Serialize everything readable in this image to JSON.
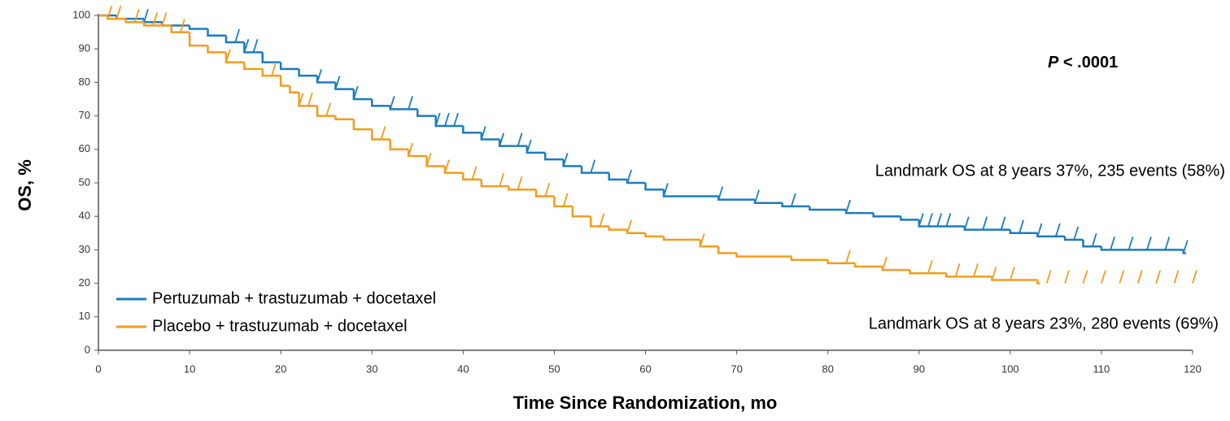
{
  "chart_data": {
    "type": "step",
    "xlabel": "Time Since Randomization, mo",
    "ylabel": "OS, %",
    "xlim": [
      0,
      120
    ],
    "xticks": [
      0,
      10,
      20,
      30,
      40,
      50,
      60,
      70,
      80,
      90,
      100,
      110,
      120
    ],
    "ylim": [
      0,
      100
    ],
    "yticks": [
      0,
      10,
      20,
      30,
      40,
      50,
      60,
      70,
      80,
      90,
      100
    ],
    "legend": "lower left",
    "annotations": {
      "p_symbol": "P",
      "p_value": "< .0001",
      "landmark_1": "Landmark OS at 8 years 37%, 235 events (58%)",
      "landmark_2": "Landmark OS at 8 years 23%, 280 events (69%)"
    },
    "series": [
      {
        "name": "Pertuzumab + trastuzumab + docetaxel",
        "color": "#1b7cc0",
        "x": [
          0,
          2,
          5,
          7,
          10,
          12,
          14,
          16,
          18,
          20,
          22,
          24,
          26,
          28,
          30,
          32,
          35,
          37,
          40,
          42,
          44,
          47,
          49,
          51,
          53,
          56,
          58,
          60,
          62,
          68,
          72,
          75,
          78,
          82,
          85,
          88,
          90,
          95,
          100,
          103,
          106,
          108,
          110,
          119
        ],
        "values": [
          100,
          99,
          98,
          97,
          96,
          94,
          92,
          89,
          86,
          84,
          82,
          80,
          78,
          75,
          73,
          72,
          70,
          67,
          65,
          63,
          61,
          59,
          57,
          55,
          53,
          51,
          50,
          48,
          46,
          45,
          44,
          43,
          42,
          41,
          40,
          39,
          37,
          36,
          35,
          34,
          33,
          31,
          30,
          29
        ],
        "censor_x": [
          5,
          15,
          16,
          17,
          24,
          26,
          28,
          32,
          34,
          37,
          38,
          39,
          42,
          44,
          46,
          47,
          51,
          54,
          58,
          62,
          68,
          72,
          76,
          82,
          90,
          91,
          92,
          93,
          95,
          97,
          99,
          101,
          103,
          105,
          107,
          109,
          111,
          113,
          115,
          117,
          119
        ]
      },
      {
        "name": "Placebo + trastuzumab + docetaxel",
        "color": "#f39c1e",
        "x": [
          0,
          1,
          3,
          5,
          8,
          10,
          12,
          14,
          16,
          18,
          20,
          21,
          22,
          24,
          26,
          28,
          30,
          32,
          34,
          36,
          38,
          40,
          42,
          45,
          48,
          50,
          52,
          54,
          56,
          58,
          60,
          62,
          66,
          68,
          70,
          76,
          80,
          83,
          86,
          89,
          93,
          98,
          103
        ],
        "values": [
          100,
          99,
          98,
          97,
          95,
          91,
          89,
          86,
          84,
          82,
          79,
          77,
          73,
          70,
          69,
          66,
          63,
          60,
          58,
          55,
          53,
          51,
          49,
          48,
          46,
          43,
          40,
          37,
          36,
          35,
          34,
          33,
          31,
          29,
          28,
          27,
          26,
          25,
          24,
          23,
          22,
          21,
          20
        ],
        "censor_x": [
          1,
          2,
          4,
          6,
          7,
          9,
          14,
          19,
          22,
          23,
          25,
          31,
          34,
          36,
          38,
          41,
          44,
          46,
          49,
          51,
          55,
          58,
          66,
          82,
          86,
          91,
          94,
          96,
          98,
          100,
          104,
          106,
          108,
          110,
          112,
          114,
          116,
          118,
          120
        ]
      }
    ]
  }
}
